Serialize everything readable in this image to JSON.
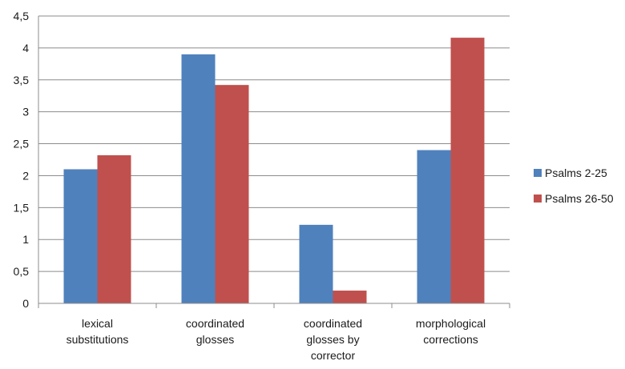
{
  "chart_data": {
    "type": "bar",
    "title": "",
    "xlabel": "",
    "ylabel": "",
    "categories": [
      [
        "lexical",
        "substitutions"
      ],
      [
        "coordinated",
        "glosses"
      ],
      [
        "coordinated",
        "glosses by",
        "corrector"
      ],
      [
        "morphological",
        "corrections"
      ]
    ],
    "series": [
      {
        "name": "Psalms 2-25",
        "color": "#4F81BD",
        "values": [
          2.1,
          3.9,
          1.23,
          2.4
        ]
      },
      {
        "name": "Psalms 26-50",
        "color": "#C0504D",
        "values": [
          2.32,
          3.42,
          0.2,
          4.16
        ]
      }
    ],
    "ylim": [
      0,
      4.5
    ],
    "yticks": [
      "0",
      "0,5",
      "1",
      "1,5",
      "2",
      "2,5",
      "3",
      "3,5",
      "4",
      "4,5"
    ],
    "grid": true,
    "legend_position": "right"
  }
}
